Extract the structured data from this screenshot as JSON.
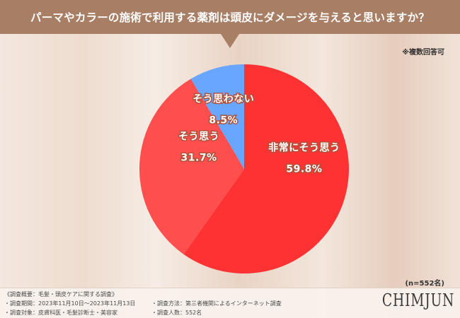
{
  "header": {
    "title": "パーマやカラーの施術で利用する薬剤は頭皮にダメージを与えると思いますか？"
  },
  "note": "※複数回答可",
  "sample_size": "(n=552名)",
  "colors": {
    "header_bg": "#a87e64",
    "very_much": "#fe3232",
    "somewhat": "#fe4e4e",
    "no": "#69a6ff"
  },
  "chart_data": {
    "type": "pie",
    "title": "パーマやカラーの施術で利用する薬剤は頭皮にダメージを与えると思いますか？",
    "slices": [
      {
        "label": "非常にそう思う",
        "value": 59.8,
        "display": "59.8%",
        "color": "#fe3232"
      },
      {
        "label": "そう思う",
        "value": 31.7,
        "display": "31.7%",
        "color": "#fe4e4e"
      },
      {
        "label": "そう思わない",
        "value": 8.5,
        "display": "8.5%",
        "color": "#69a6ff"
      }
    ],
    "start": "12 o'clock",
    "direction": "clockwise"
  },
  "footer": {
    "overview": "《調査概要：毛髪・頭皮ケアに関する調査》",
    "period": "・調査期間：2023年11月10日〜2023年11月13日",
    "method": "・調査方法：第三者機関によるインターネット調査",
    "target": "・調査対象：皮膚科医・毛髪診断士・美容家",
    "count": "・調査人数：552名"
  },
  "logo": "CHIMJUN"
}
